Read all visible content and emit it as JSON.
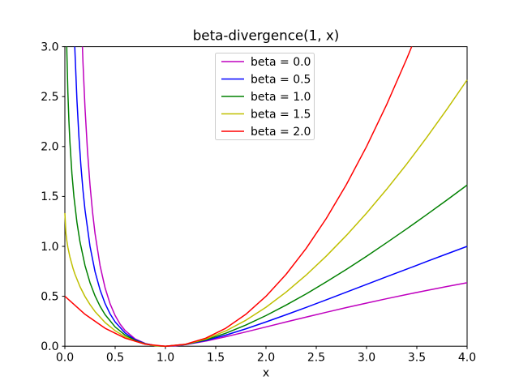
{
  "chart_data": {
    "type": "line",
    "title": "beta-divergence(1, x)",
    "xlabel": "x",
    "ylabel": "",
    "xlim": [
      0,
      4
    ],
    "ylim": [
      0,
      3
    ],
    "xticks": [
      0,
      0.5,
      1,
      1.5,
      2,
      2.5,
      3,
      3.5,
      4
    ],
    "xtick_labels": [
      "0.0",
      "0.5",
      "1.0",
      "1.5",
      "2.0",
      "2.5",
      "3.0",
      "3.5",
      "4.0"
    ],
    "yticks": [
      0,
      0.5,
      1,
      1.5,
      2,
      2.5,
      3
    ],
    "ytick_labels": [
      "0.0",
      "0.5",
      "1.0",
      "1.5",
      "2.0",
      "2.5",
      "3.0"
    ],
    "grid": false,
    "legend": {
      "position": "upper center",
      "border": true,
      "border_color": "#cccccc",
      "background": "rgba(255,255,255,0.8)"
    },
    "series": [
      {
        "name": "beta = 0.0",
        "color": "#bf00bf",
        "x": [
          0.14,
          0.16,
          0.18,
          0.2,
          0.225,
          0.25,
          0.275,
          0.3,
          0.35,
          0.4,
          0.45,
          0.5,
          0.55,
          0.6,
          0.7,
          0.8,
          0.9,
          1.0,
          1.1,
          1.2,
          1.4,
          1.6,
          1.8,
          2.0,
          2.2,
          2.4,
          2.6,
          2.8,
          3.0,
          3.2,
          3.4,
          3.6,
          3.8,
          4.0
        ],
        "y": [
          4.177,
          3.417,
          2.841,
          2.391,
          1.953,
          1.614,
          1.345,
          1.129,
          0.807,
          0.584,
          0.424,
          0.307,
          0.22,
          0.156,
          0.072,
          0.027,
          0.006,
          0.0,
          0.004,
          0.016,
          0.051,
          0.095,
          0.143,
          0.193,
          0.243,
          0.292,
          0.34,
          0.387,
          0.432,
          0.476,
          0.518,
          0.559,
          0.598,
          0.636
        ]
      },
      {
        "name": "beta = 0.5",
        "color": "#0000ff",
        "x": [
          0.08,
          0.09,
          0.1,
          0.12,
          0.14,
          0.16,
          0.18,
          0.2,
          0.25,
          0.3,
          0.35,
          0.4,
          0.45,
          0.5,
          0.6,
          0.7,
          0.8,
          0.9,
          1.0,
          1.2,
          1.4,
          1.6,
          1.8,
          2.0,
          2.2,
          2.4,
          2.6,
          2.8,
          3.0,
          3.2,
          3.4,
          3.6,
          3.8,
          4.0
        ],
        "y": [
          3.637,
          3.267,
          2.957,
          2.466,
          2.094,
          1.8,
          1.563,
          1.367,
          1.0,
          0.747,
          0.564,
          0.427,
          0.323,
          0.243,
          0.131,
          0.064,
          0.025,
          0.006,
          0.0,
          0.017,
          0.057,
          0.111,
          0.174,
          0.243,
          0.315,
          0.389,
          0.465,
          0.542,
          0.619,
          0.696,
          0.772,
          0.849,
          0.925,
          1.0
        ]
      },
      {
        "name": "beta = 1.0",
        "color": "#008000",
        "x": [
          0.015,
          0.02,
          0.03,
          0.04,
          0.05,
          0.07,
          0.09,
          0.12,
          0.15,
          0.2,
          0.25,
          0.3,
          0.35,
          0.4,
          0.5,
          0.6,
          0.7,
          0.8,
          0.9,
          1.0,
          1.2,
          1.4,
          1.6,
          1.8,
          2.0,
          2.2,
          2.4,
          2.6,
          2.8,
          3.0,
          3.2,
          3.4,
          3.6,
          3.8,
          4.0
        ],
        "y": [
          3.215,
          2.932,
          2.537,
          2.259,
          2.046,
          1.729,
          1.498,
          1.24,
          1.047,
          0.809,
          0.636,
          0.504,
          0.4,
          0.316,
          0.193,
          0.111,
          0.057,
          0.023,
          0.005,
          0.0,
          0.018,
          0.064,
          0.13,
          0.212,
          0.307,
          0.412,
          0.524,
          0.645,
          0.77,
          0.901,
          1.037,
          1.176,
          1.319,
          1.465,
          1.614
        ]
      },
      {
        "name": "beta = 1.5",
        "color": "#bfbf00",
        "x": [
          0,
          0.01,
          0.02,
          0.03,
          0.05,
          0.08,
          0.1,
          0.15,
          0.2,
          0.25,
          0.3,
          0.4,
          0.5,
          0.6,
          0.7,
          0.8,
          0.9,
          1.0,
          1.2,
          1.4,
          1.6,
          1.8,
          2.0,
          2.2,
          2.4,
          2.6,
          2.8,
          3.0,
          3.2,
          3.4,
          3.6,
          3.8,
          4.0
        ],
        "y": [
          1.333,
          1.134,
          1.052,
          0.99,
          0.894,
          0.783,
          0.722,
          0.597,
          0.498,
          0.417,
          0.347,
          0.237,
          0.155,
          0.094,
          0.05,
          0.022,
          0.005,
          0.0,
          0.019,
          0.071,
          0.153,
          0.26,
          0.39,
          0.542,
          0.713,
          0.903,
          1.11,
          1.333,
          1.572,
          1.825,
          2.093,
          2.374,
          2.667
        ]
      },
      {
        "name": "beta = 2.0",
        "color": "#ff0000",
        "x": [
          0,
          0.2,
          0.4,
          0.6,
          0.8,
          1.0,
          1.2,
          1.4,
          1.6,
          1.8,
          2.0,
          2.2,
          2.4,
          2.6,
          2.8,
          3.0,
          3.2,
          3.4,
          3.5
        ],
        "y": [
          0.5,
          0.32,
          0.18,
          0.08,
          0.02,
          0.0,
          0.02,
          0.08,
          0.18,
          0.32,
          0.5,
          0.72,
          0.98,
          1.28,
          1.62,
          2.0,
          2.42,
          2.88,
          3.125
        ]
      }
    ]
  }
}
